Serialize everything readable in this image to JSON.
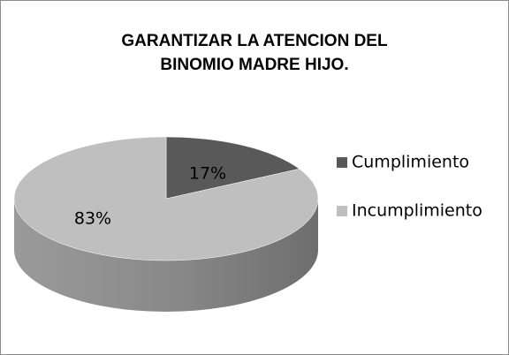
{
  "chart_data": {
    "type": "pie",
    "title": [
      "GARANTIZAR LA ATENCION DEL",
      "BINOMIO MADRE HIJO."
    ],
    "categories": [
      "Cumplimiento",
      "Incumplimiento"
    ],
    "values": [
      17,
      83
    ],
    "value_labels": [
      "17%",
      "83%"
    ],
    "colors": [
      "#595959",
      "#bfbfbf"
    ],
    "legend": "right"
  }
}
